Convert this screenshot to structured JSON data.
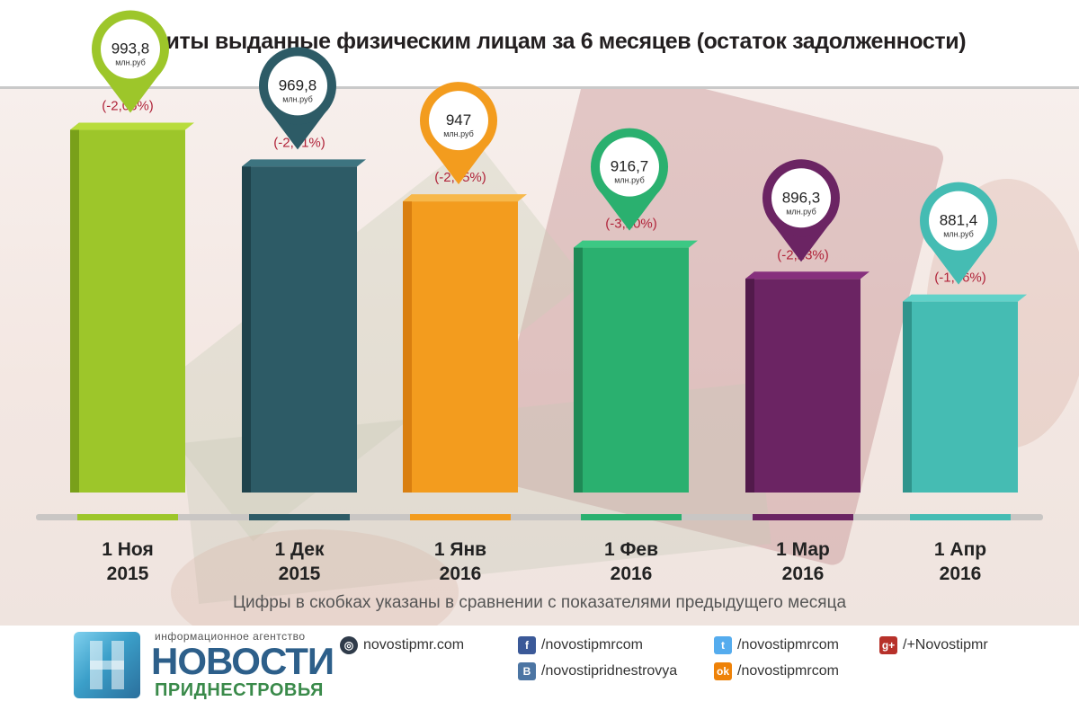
{
  "title": "Кредиты выданные физическим лицам за 6 месяцев (остаток задолженности)",
  "footnote": "Цифры в скобках указаны в сравнении с показателями предыдущего месяца",
  "unit": "млн.руб",
  "chart_data": {
    "type": "bar",
    "title": "Кредиты выданные физическим лицам за 6 месяцев (остаток задолженности)",
    "categories": [
      "1 Ноя 2015",
      "1 Дек 2015",
      "1 Янв 2016",
      "1 Фев 2016",
      "1 Мар 2016",
      "1 Апр 2016"
    ],
    "category_lines": [
      [
        "1 Ноя",
        "2015"
      ],
      [
        "1 Дек",
        "2015"
      ],
      [
        "1 Янв",
        "2016"
      ],
      [
        "1 Фев",
        "2016"
      ],
      [
        "1 Мар",
        "2016"
      ],
      [
        "1 Апр",
        "2016"
      ]
    ],
    "values": [
      993.8,
      969.8,
      947,
      916.7,
      896.3,
      881.4
    ],
    "value_labels": [
      "993,8",
      "969,8",
      "947",
      "916,7",
      "896,3",
      "881,4"
    ],
    "change_labels": [
      "(-2,06%)",
      "(-2,41%)",
      "(-2,35%)",
      "(-3,20%)",
      "(-2,23%)",
      "(-1,66%)"
    ],
    "colors": [
      "#9dc62a",
      "#2d5b66",
      "#f39c1e",
      "#2ab06f",
      "#6b2463",
      "#45bcb3"
    ],
    "dark_colors": [
      "#79a01a",
      "#1f434c",
      "#d97f10",
      "#1f8a56",
      "#521a4b",
      "#2f948c"
    ],
    "top_colors": [
      "#b8dc3c",
      "#3d7480",
      "#f7b84a",
      "#3cc884",
      "#86307d",
      "#62d2c9"
    ],
    "xlabel": "",
    "ylabel": ""
  },
  "footer": {
    "agency_small": "информационное агентство",
    "agency_big": "НОВОСТИ",
    "agency_sub": "ПРИДНЕСТРОВЬЯ",
    "site": "novostipmr.com",
    "facebook": "/novostipmrcom",
    "twitter": "/novostipmrcom",
    "gplus": "/+Novostipmr",
    "vk": "/novostipridnestrovya",
    "ok": "/novostipmrcom"
  }
}
